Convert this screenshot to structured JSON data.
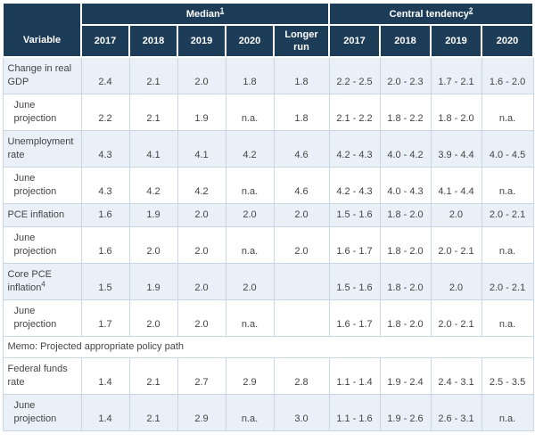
{
  "colors": {
    "header_bg": "#1d3c58",
    "header_text": "#ffffff",
    "row_shaded_bg": "#e9f0f7",
    "row_plain_bg": "#ffffff",
    "cell_border": "#c9d6e3",
    "body_text": "#444444",
    "bottom_border": "#97a6b4"
  },
  "table": {
    "header": {
      "variable_label": "Variable",
      "median": {
        "label": "Median",
        "footnote": "1"
      },
      "central": {
        "label": "Central tendency",
        "footnote": "2"
      },
      "median_years": [
        "2017",
        "2018",
        "2019",
        "2020",
        "Longer run"
      ],
      "central_years": [
        "2017",
        "2018",
        "2019",
        "2020"
      ]
    },
    "rows": [
      {
        "type": "data",
        "label": "Change in real GDP",
        "footnote": "",
        "indent": false,
        "shaded": true,
        "median": [
          "2.4",
          "2.1",
          "2.0",
          "1.8",
          "1.8"
        ],
        "central": [
          "2.2 - 2.5",
          "2.0 - 2.3",
          "1.7 - 2.1",
          "1.6 - 2.0"
        ]
      },
      {
        "type": "data",
        "label": "June projection",
        "footnote": "",
        "indent": true,
        "shaded": false,
        "median": [
          "2.2",
          "2.1",
          "1.9",
          "n.a.",
          "1.8"
        ],
        "central": [
          "2.1 - 2.2",
          "1.8 - 2.2",
          "1.8 - 2.0",
          "n.a."
        ]
      },
      {
        "type": "data",
        "label": "Unemployment rate",
        "footnote": "",
        "indent": false,
        "shaded": true,
        "median": [
          "4.3",
          "4.1",
          "4.1",
          "4.2",
          "4.6"
        ],
        "central": [
          "4.2 - 4.3",
          "4.0 - 4.2",
          "3.9 - 4.4",
          "4.0 - 4.5"
        ]
      },
      {
        "type": "data",
        "label": "June projection",
        "footnote": "",
        "indent": true,
        "shaded": false,
        "median": [
          "4.3",
          "4.2",
          "4.2",
          "n.a.",
          "4.6"
        ],
        "central": [
          "4.2 - 4.3",
          "4.0 - 4.3",
          "4.1 - 4.4",
          "n.a."
        ]
      },
      {
        "type": "data",
        "label": "PCE inflation",
        "footnote": "",
        "indent": false,
        "shaded": true,
        "median": [
          "1.6",
          "1.9",
          "2.0",
          "2.0",
          "2.0"
        ],
        "central": [
          "1.5 - 1.6",
          "1.8 - 2.0",
          "2.0",
          "2.0 - 2.1"
        ]
      },
      {
        "type": "data",
        "label": "June projection",
        "footnote": "",
        "indent": true,
        "shaded": false,
        "median": [
          "1.6",
          "2.0",
          "2.0",
          "n.a.",
          "2.0"
        ],
        "central": [
          "1.6 - 1.7",
          "1.8 - 2.0",
          "2.0 - 2.1",
          "n.a."
        ]
      },
      {
        "type": "data",
        "label": "Core PCE inflation",
        "footnote": "4",
        "indent": false,
        "shaded": true,
        "median": [
          "1.5",
          "1.9",
          "2.0",
          "2.0",
          ""
        ],
        "central": [
          "1.5 - 1.6",
          "1.8 - 2.0",
          "2.0",
          "2.0 - 2.1"
        ]
      },
      {
        "type": "data",
        "label": "June projection",
        "footnote": "",
        "indent": true,
        "shaded": false,
        "median": [
          "1.7",
          "2.0",
          "2.0",
          "n.a.",
          ""
        ],
        "central": [
          "1.6 - 1.7",
          "1.8 - 2.0",
          "2.0 - 2.1",
          "n.a."
        ]
      },
      {
        "type": "memo",
        "label": "Memo: Projected appropriate policy path"
      },
      {
        "type": "data",
        "label": "Federal funds rate",
        "footnote": "",
        "indent": false,
        "shaded": false,
        "median": [
          "1.4",
          "2.1",
          "2.7",
          "2.9",
          "2.8"
        ],
        "central": [
          "1.1 - 1.4",
          "1.9 - 2.4",
          "2.4 - 3.1",
          "2.5 - 3.5"
        ]
      },
      {
        "type": "data",
        "label": "June projection",
        "footnote": "",
        "indent": true,
        "shaded": true,
        "median": [
          "1.4",
          "2.1",
          "2.9",
          "n.a.",
          "3.0"
        ],
        "central": [
          "1.1 - 1.6",
          "1.9 - 2.6",
          "2.6 - 3.1",
          "n.a."
        ]
      }
    ]
  },
  "chart_data": {
    "type": "table",
    "title": "Economic projections: Median and Central tendency",
    "column_groups": [
      "Median",
      "Central tendency"
    ],
    "columns": [
      "Variable",
      "Median 2017",
      "Median 2018",
      "Median 2019",
      "Median 2020",
      "Median Longer run",
      "Central tendency 2017",
      "Central tendency 2018",
      "Central tendency 2019",
      "Central tendency 2020"
    ],
    "rows": [
      [
        "Change in real GDP",
        "2.4",
        "2.1",
        "2.0",
        "1.8",
        "1.8",
        "2.2 - 2.5",
        "2.0 - 2.3",
        "1.7 - 2.1",
        "1.6 - 2.0"
      ],
      [
        "June projection",
        "2.2",
        "2.1",
        "1.9",
        "n.a.",
        "1.8",
        "2.1 - 2.2",
        "1.8 - 2.2",
        "1.8 - 2.0",
        "n.a."
      ],
      [
        "Unemployment rate",
        "4.3",
        "4.1",
        "4.1",
        "4.2",
        "4.6",
        "4.2 - 4.3",
        "4.0 - 4.2",
        "3.9 - 4.4",
        "4.0 - 4.5"
      ],
      [
        "June projection",
        "4.3",
        "4.2",
        "4.2",
        "n.a.",
        "4.6",
        "4.2 - 4.3",
        "4.0 - 4.3",
        "4.1 - 4.4",
        "n.a."
      ],
      [
        "PCE inflation",
        "1.6",
        "1.9",
        "2.0",
        "2.0",
        "2.0",
        "1.5 - 1.6",
        "1.8 - 2.0",
        "2.0",
        "2.0 - 2.1"
      ],
      [
        "June projection",
        "1.6",
        "2.0",
        "2.0",
        "n.a.",
        "2.0",
        "1.6 - 1.7",
        "1.8 - 2.0",
        "2.0 - 2.1",
        "n.a."
      ],
      [
        "Core PCE inflation (4)",
        "1.5",
        "1.9",
        "2.0",
        "2.0",
        "",
        "1.5 - 1.6",
        "1.8 - 2.0",
        "2.0",
        "2.0 - 2.1"
      ],
      [
        "June projection",
        "1.7",
        "2.0",
        "2.0",
        "n.a.",
        "",
        "1.6 - 1.7",
        "1.8 - 2.0",
        "2.0 - 2.1",
        "n.a."
      ],
      [
        "Memo: Projected appropriate policy path",
        "",
        "",
        "",
        "",
        "",
        "",
        "",
        "",
        ""
      ],
      [
        "Federal funds rate",
        "1.4",
        "2.1",
        "2.7",
        "2.9",
        "2.8",
        "1.1 - 1.4",
        "1.9 - 2.4",
        "2.4 - 3.1",
        "2.5 - 3.5"
      ],
      [
        "June projection",
        "1.4",
        "2.1",
        "2.9",
        "n.a.",
        "3.0",
        "1.1 - 1.6",
        "1.9 - 2.6",
        "2.6 - 3.1",
        "n.a."
      ]
    ],
    "footnote_markers": {
      "Median": "1",
      "Central tendency": "2",
      "Core PCE inflation": "4"
    }
  }
}
